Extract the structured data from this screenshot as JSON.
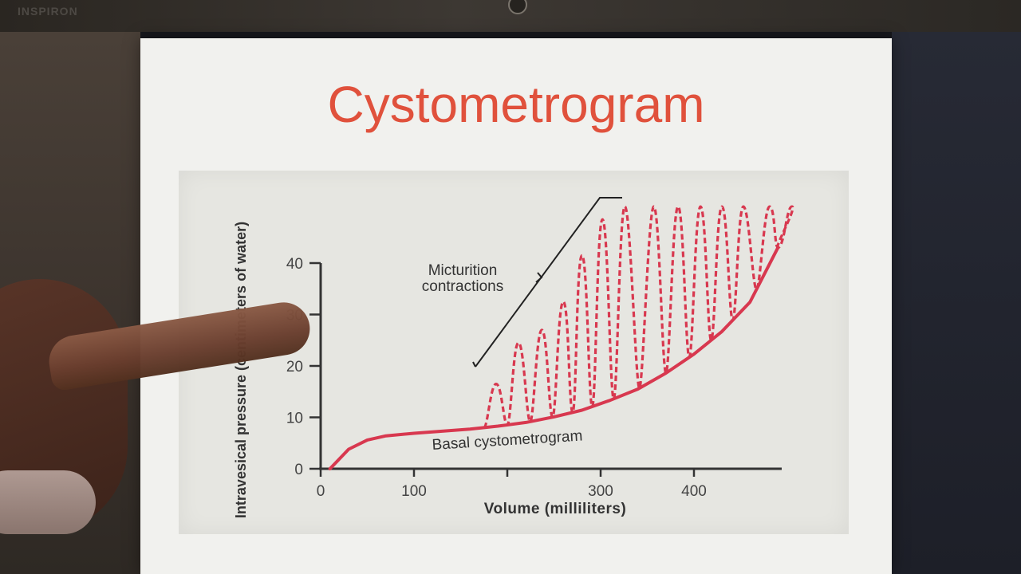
{
  "device": {
    "brand": "INSPIRON"
  },
  "slide": {
    "title": "Cystometrogram"
  },
  "colors": {
    "title": "#e0513c",
    "curve": "#d8384f",
    "axis": "#333333",
    "annotation": "#222222"
  },
  "chart_data": {
    "type": "line",
    "title": "",
    "xlabel": "Volume (milliliters)",
    "ylabel": "Intravesical pressure (centimeters of water)",
    "xlim": [
      0,
      490
    ],
    "ylim": [
      0,
      40
    ],
    "xticks": [
      "0",
      "100",
      "300",
      "400"
    ],
    "yticks": [
      "0",
      "10",
      "20",
      "30",
      "40"
    ],
    "grid": false,
    "series": [
      {
        "name": "Basal cystometrogram",
        "style": "solid",
        "x": [
          10,
          30,
          50,
          70,
          100,
          130,
          160,
          190,
          220,
          250,
          280,
          310,
          340,
          370,
          400,
          430,
          460,
          490
        ],
        "y": [
          0,
          3.8,
          5.6,
          6.4,
          6.9,
          7.3,
          7.7,
          8.3,
          9.0,
          10.1,
          11.4,
          13.3,
          15.5,
          18.6,
          22.3,
          26.7,
          32.4,
          43
        ]
      },
      {
        "name": "Micturition contractions",
        "style": "dashed",
        "peaks_x": [
          188,
          212,
          237,
          260,
          280,
          302,
          326,
          357,
          383,
          407,
          430,
          453,
          481,
          505
        ],
        "peaks_y": [
          16.5,
          24.5,
          27.0,
          32.5,
          41.5,
          48.5,
          51.0,
          51.0,
          51.0,
          51.0,
          51.0,
          51.0,
          51.0,
          51.0
        ]
      }
    ],
    "annotations": [
      {
        "text": [
          "Micturition",
          "contractions"
        ]
      },
      {
        "text": [
          "Basal cystometrogram"
        ]
      }
    ]
  }
}
